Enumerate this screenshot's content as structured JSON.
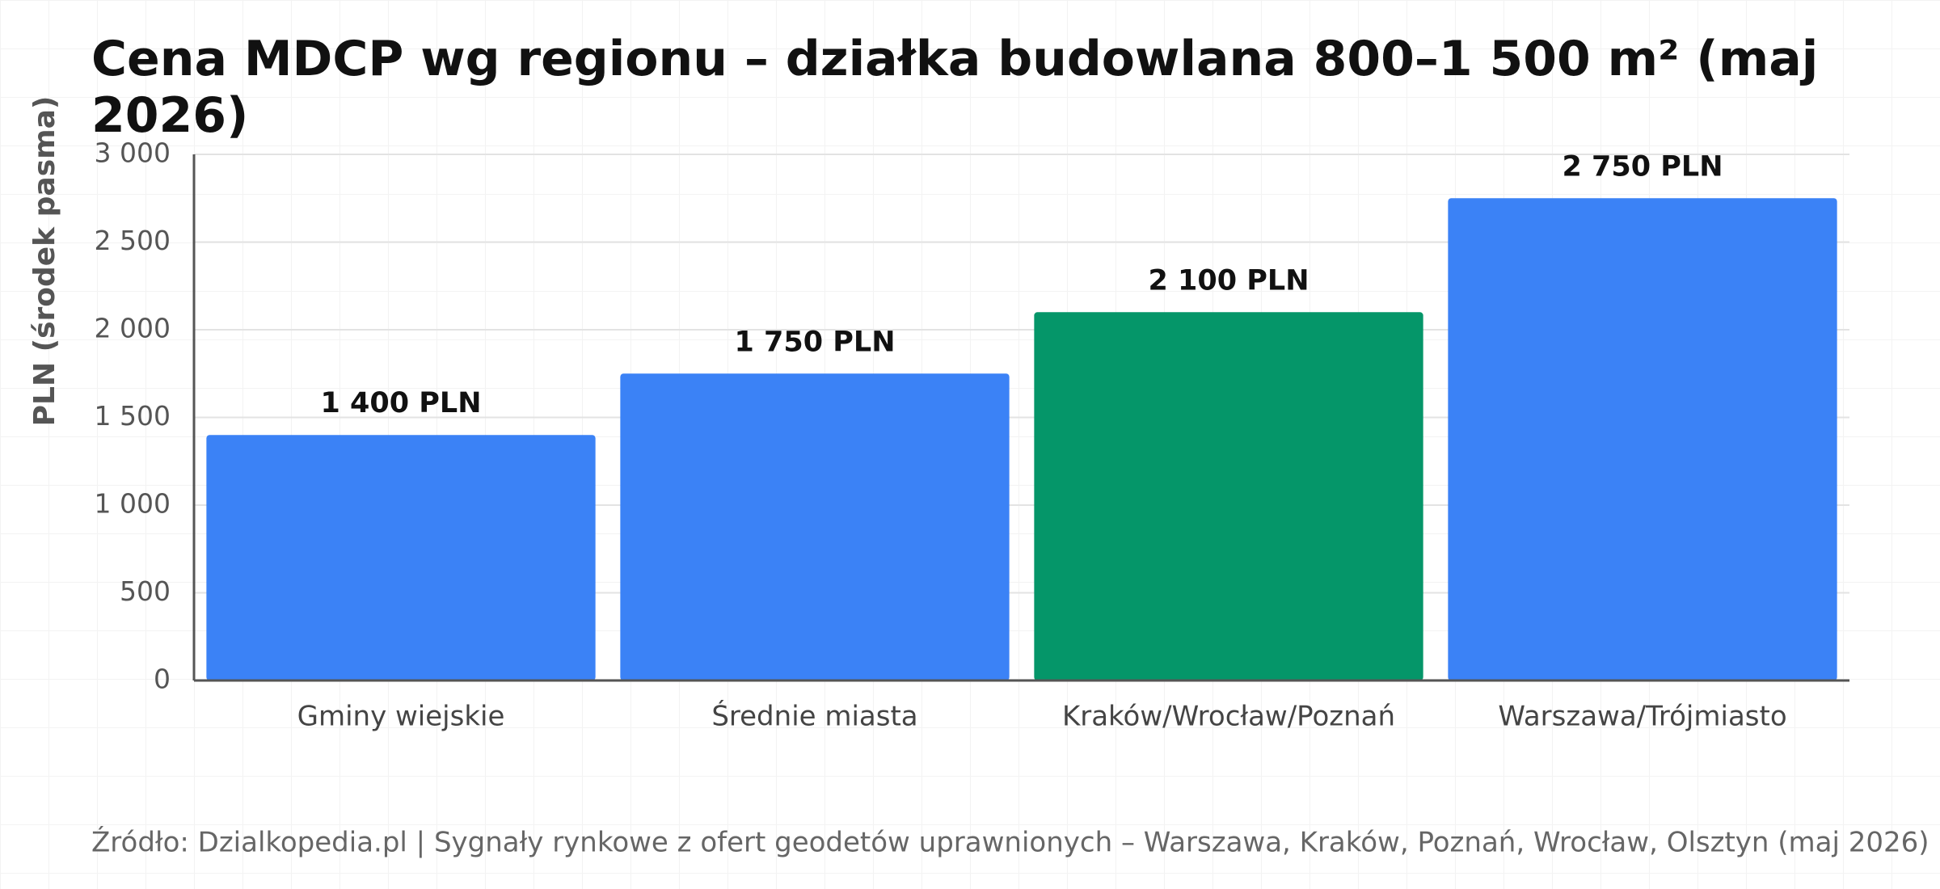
{
  "chart_data": {
    "type": "bar",
    "title": "Cena MDCP wg regionu – działka budowlana 800–1 500 m² (maj 2026)",
    "y_label": "PLN (środek pasma)",
    "categories": [
      "Gminy wiejskie",
      "Średnie miasta",
      "Kraków/Wrocław/Poznań",
      "Warszawa/Trójmiasto"
    ],
    "values": [
      1400,
      1750,
      2100,
      2750
    ],
    "value_labels": [
      "1 400 PLN",
      "1 750 PLN",
      "2 100 PLN",
      "2 750 PLN"
    ],
    "colors": [
      "#3b82f6",
      "#3b82f6",
      "#059669",
      "#3b82f6"
    ],
    "ylim": [
      0,
      3000
    ],
    "yticks": [
      0,
      500,
      {
        "value": 1000,
        "label": "1 000"
      },
      {
        "value": 1500,
        "label": "1 500"
      },
      {
        "value": 2000,
        "label": "2 000"
      },
      {
        "value": 2500,
        "label": "2 500"
      },
      {
        "value": 3000,
        "label": "3 000"
      }
    ],
    "grid": true,
    "source": "Źródło: Dzialkopedia.pl | Sygnały rynkowe z ofert geodetów uprawnionych – Warszawa, Kraków, Poznań, Wrocław, Olsztyn (maj 2026)"
  }
}
